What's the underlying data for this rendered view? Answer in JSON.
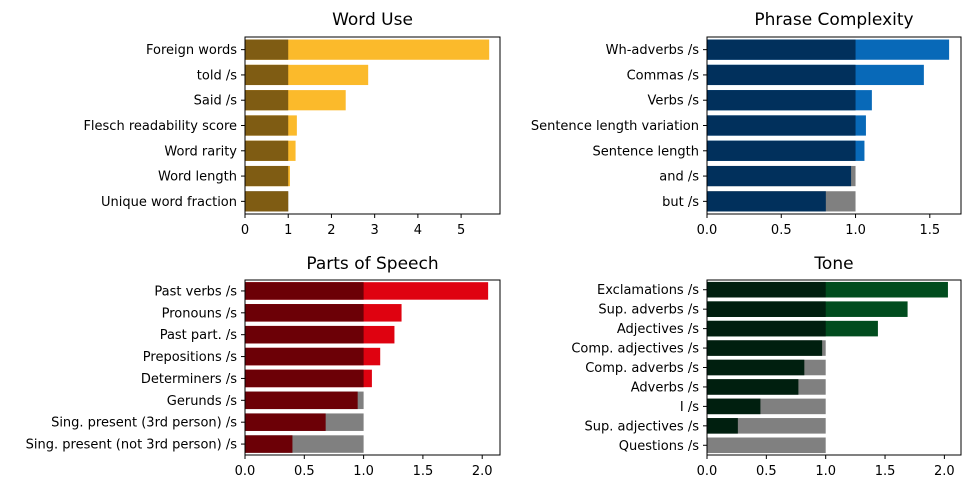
{
  "chart_data": [
    {
      "type": "bar",
      "orientation": "horizontal",
      "stacked_overlay": true,
      "title": "Word Use",
      "categories": [
        "Foreign words",
        "told /s",
        "Said /s",
        "Flesch readability score",
        "Word rarity",
        "Word length",
        "Unique word fraction"
      ],
      "values": [
        5.65,
        2.85,
        2.33,
        1.2,
        1.17,
        1.04,
        1.0
      ],
      "baseline": 1.0,
      "xlim": [
        0,
        5.9
      ],
      "xticks": [
        "0",
        "1",
        "2",
        "3",
        "4",
        "5"
      ],
      "xtick_values": [
        0,
        1,
        2,
        3,
        4,
        5
      ],
      "colors": {
        "base": "#7f5c13",
        "above": "#fbba2b",
        "below": "#808080"
      }
    },
    {
      "type": "bar",
      "orientation": "horizontal",
      "stacked_overlay": true,
      "title": "Phrase Complexity",
      "categories": [
        "Wh-adverbs /s",
        "Commas /s",
        "Verbs /s",
        "Sentence length variation",
        "Sentence length",
        "and /s",
        "but /s"
      ],
      "values": [
        1.63,
        1.46,
        1.11,
        1.07,
        1.06,
        0.97,
        0.8
      ],
      "baseline": 1.0,
      "xlim": [
        0,
        1.71
      ],
      "xticks": [
        "0.0",
        "0.5",
        "1.0",
        "1.5"
      ],
      "xtick_values": [
        0,
        0.5,
        1.0,
        1.5
      ],
      "colors": {
        "base": "#01305c",
        "above": "#0869b8",
        "below": "#808080"
      }
    },
    {
      "type": "bar",
      "orientation": "horizontal",
      "stacked_overlay": true,
      "title": "Parts of Speech",
      "categories": [
        "Past verbs /s",
        "Pronouns /s",
        "Past part. /s",
        "Prepositions /s",
        "Determiners /s",
        "Gerunds /s",
        "Sing. present (3rd person) /s",
        "Sing. present (not 3rd person) /s"
      ],
      "values": [
        2.05,
        1.32,
        1.26,
        1.14,
        1.07,
        0.95,
        0.68,
        0.4
      ],
      "baseline": 1.0,
      "xlim": [
        0,
        2.15
      ],
      "xticks": [
        "0.0",
        "0.5",
        "1.0",
        "1.5",
        "2.0"
      ],
      "xtick_values": [
        0,
        0.5,
        1.0,
        1.5,
        2.0
      ],
      "colors": {
        "base": "#6c0006",
        "above": "#df0210",
        "below": "#808080"
      }
    },
    {
      "type": "bar",
      "orientation": "horizontal",
      "stacked_overlay": true,
      "title": "Tone",
      "categories": [
        "Exclamations /s",
        "Sup. adverbs /s",
        "Adjectives /s",
        "Comp. adjectives /s",
        "Comp. adverbs /s",
        "Adverbs /s",
        "I /s",
        "Sup. adjectives /s",
        "Questions /s"
      ],
      "values": [
        2.03,
        1.69,
        1.44,
        0.97,
        0.82,
        0.77,
        0.45,
        0.26,
        0.0
      ],
      "baseline": 1.0,
      "xlim": [
        0,
        2.14
      ],
      "xticks": [
        "0.0",
        "0.5",
        "1.0",
        "1.5",
        "2.0"
      ],
      "xtick_values": [
        0,
        0.5,
        1.0,
        1.5,
        2.0
      ],
      "colors": {
        "base": "#001f0f",
        "above": "#014c1e",
        "below": "#808080"
      }
    }
  ]
}
